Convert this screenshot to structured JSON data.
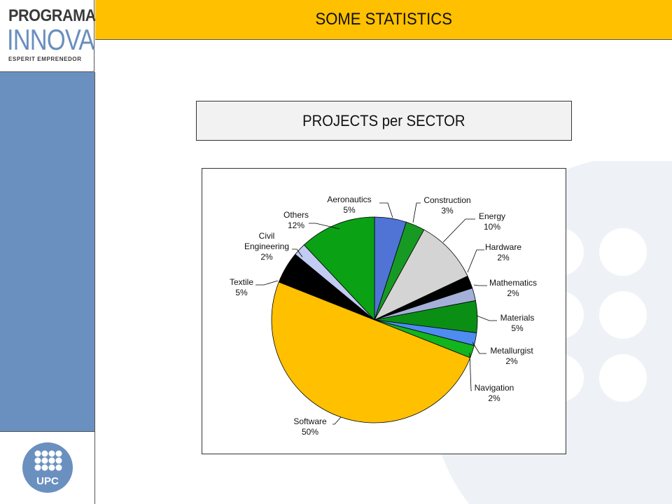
{
  "logo": {
    "line1": "PROGRAMA",
    "line2": "INNOVA",
    "line3": "ESPERIT EMPRENEDOR"
  },
  "header": {
    "title": "SOME STATISTICS"
  },
  "university_logo": {
    "text": "UPC"
  },
  "colors": {
    "header": "#ffc000",
    "sidebar": "#6a90c0",
    "chart_title_bg": "#f2f2f2"
  },
  "chart_data": {
    "type": "pie",
    "title": "PROJECTS per SECTOR",
    "slices": [
      {
        "label": "Aeronautics",
        "value": 5,
        "display": "5%",
        "color": "#4f74d6"
      },
      {
        "label": "Construction",
        "value": 3,
        "display": "3%",
        "color": "#179a23"
      },
      {
        "label": "Energy",
        "value": 10,
        "display": "10%",
        "color": "#d4d4d4"
      },
      {
        "label": "Hardware",
        "value": 2,
        "display": "2%",
        "color": "#000000"
      },
      {
        "label": "Mathematics",
        "value": 2,
        "display": "2%",
        "color": "#a4b0d8"
      },
      {
        "label": "Materials",
        "value": 5,
        "display": "5%",
        "color": "#0a8f14"
      },
      {
        "label": "Metallurgist",
        "value": 2,
        "display": "2%",
        "color": "#4e8cf0"
      },
      {
        "label": "Navigation",
        "value": 2,
        "display": "2%",
        "color": "#12b51d"
      },
      {
        "label": "Software",
        "value": 50,
        "display": "50%",
        "color": "#ffc000"
      },
      {
        "label": "Textile",
        "value": 5,
        "display": "5%",
        "color": "#000000"
      },
      {
        "label": "Civil\nEngineering",
        "value": 2,
        "display": "2%",
        "color": "#c2cbf2"
      },
      {
        "label": "Others",
        "value": 12,
        "display": "12%",
        "color": "#0aa214"
      }
    ]
  }
}
